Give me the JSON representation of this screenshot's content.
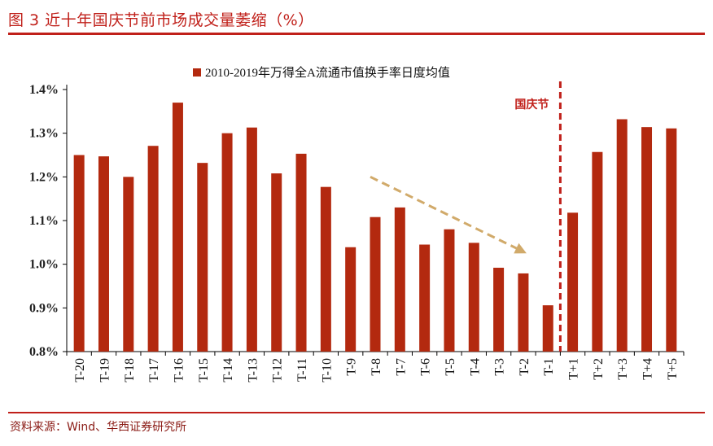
{
  "title": "图 3 近十年国庆节前市场成交量萎缩（%）",
  "source": "资料来源：Wind、华西证券研究所",
  "colors": {
    "bar": "#b3290f",
    "accent": "#c0201a",
    "arrow": "#d1aa6a"
  },
  "chart_data": {
    "type": "bar",
    "categories": [
      "T-20",
      "T-19",
      "T-18",
      "T-17",
      "T-16",
      "T-15",
      "T-14",
      "T-13",
      "T-12",
      "T-11",
      "T-10",
      "T-9",
      "T-8",
      "T-7",
      "T-6",
      "T-5",
      "T-4",
      "T-3",
      "T-2",
      "T-1",
      "T+1",
      "T+2",
      "T+3",
      "T+4",
      "T+5"
    ],
    "series": [
      {
        "name": "2010-2019年万得全A流通市值换手率日度均值",
        "values": [
          1.25,
          1.247,
          1.2,
          1.271,
          1.37,
          1.232,
          1.3,
          1.313,
          1.208,
          1.253,
          1.177,
          1.039,
          1.108,
          1.13,
          1.045,
          1.08,
          1.049,
          0.992,
          0.979,
          0.906,
          1.118,
          1.257,
          1.332,
          1.314,
          1.311
        ]
      }
    ],
    "yticks": [
      "0.8%",
      "0.9%",
      "1.0%",
      "1.1%",
      "1.2%",
      "1.3%",
      "1.4%"
    ],
    "ylim": [
      0.8,
      1.4
    ],
    "legend_position": "top-center",
    "grid": false,
    "annotations": [
      {
        "text": "国庆节",
        "type": "vertical-dashed-line",
        "between": [
          "T-1",
          "T+1"
        ]
      },
      {
        "type": "trend-arrow",
        "from": "T-8",
        "to": "T-2",
        "direction": "down"
      }
    ]
  }
}
